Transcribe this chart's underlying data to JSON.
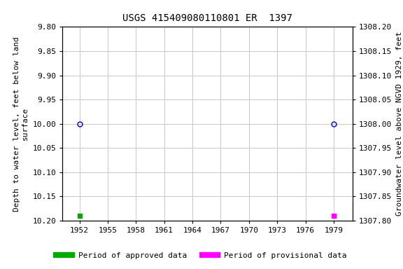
{
  "title": "USGS 415409080110801 ER  1397",
  "ylabel_left": "Depth to water level, feet below land\nsurface",
  "ylabel_right": "Groundwater level above NGVD 1929, feet",
  "xlim": [
    1950.2,
    1981.0
  ],
  "xticks": [
    1952,
    1955,
    1958,
    1961,
    1964,
    1967,
    1970,
    1973,
    1976,
    1979
  ],
  "ylim_left": [
    10.2,
    9.8
  ],
  "ylim_right": [
    1307.8,
    1308.2
  ],
  "yticks_left": [
    9.8,
    9.85,
    9.9,
    9.95,
    10.0,
    10.05,
    10.1,
    10.15,
    10.2
  ],
  "yticks_right": [
    1307.8,
    1307.85,
    1307.9,
    1307.95,
    1308.0,
    1308.05,
    1308.1,
    1308.15,
    1308.2
  ],
  "circle_points": [
    [
      1952,
      10.0
    ],
    [
      1979,
      10.0
    ]
  ],
  "green_square_x": 1952,
  "green_square_y": 10.19,
  "magenta_square_x": 1979,
  "magenta_square_y": 10.19,
  "circle_color": "#0000cc",
  "circle_size": 5,
  "green_color": "#00aa00",
  "magenta_color": "#ff00ff",
  "square_size": 4,
  "grid_color": "#c8c8c8",
  "bg_color": "#ffffff",
  "title_fontsize": 10,
  "axis_label_fontsize": 8,
  "tick_fontsize": 8,
  "legend_fontsize": 8,
  "legend_approved": "Period of approved data",
  "legend_provisional": "Period of provisional data"
}
